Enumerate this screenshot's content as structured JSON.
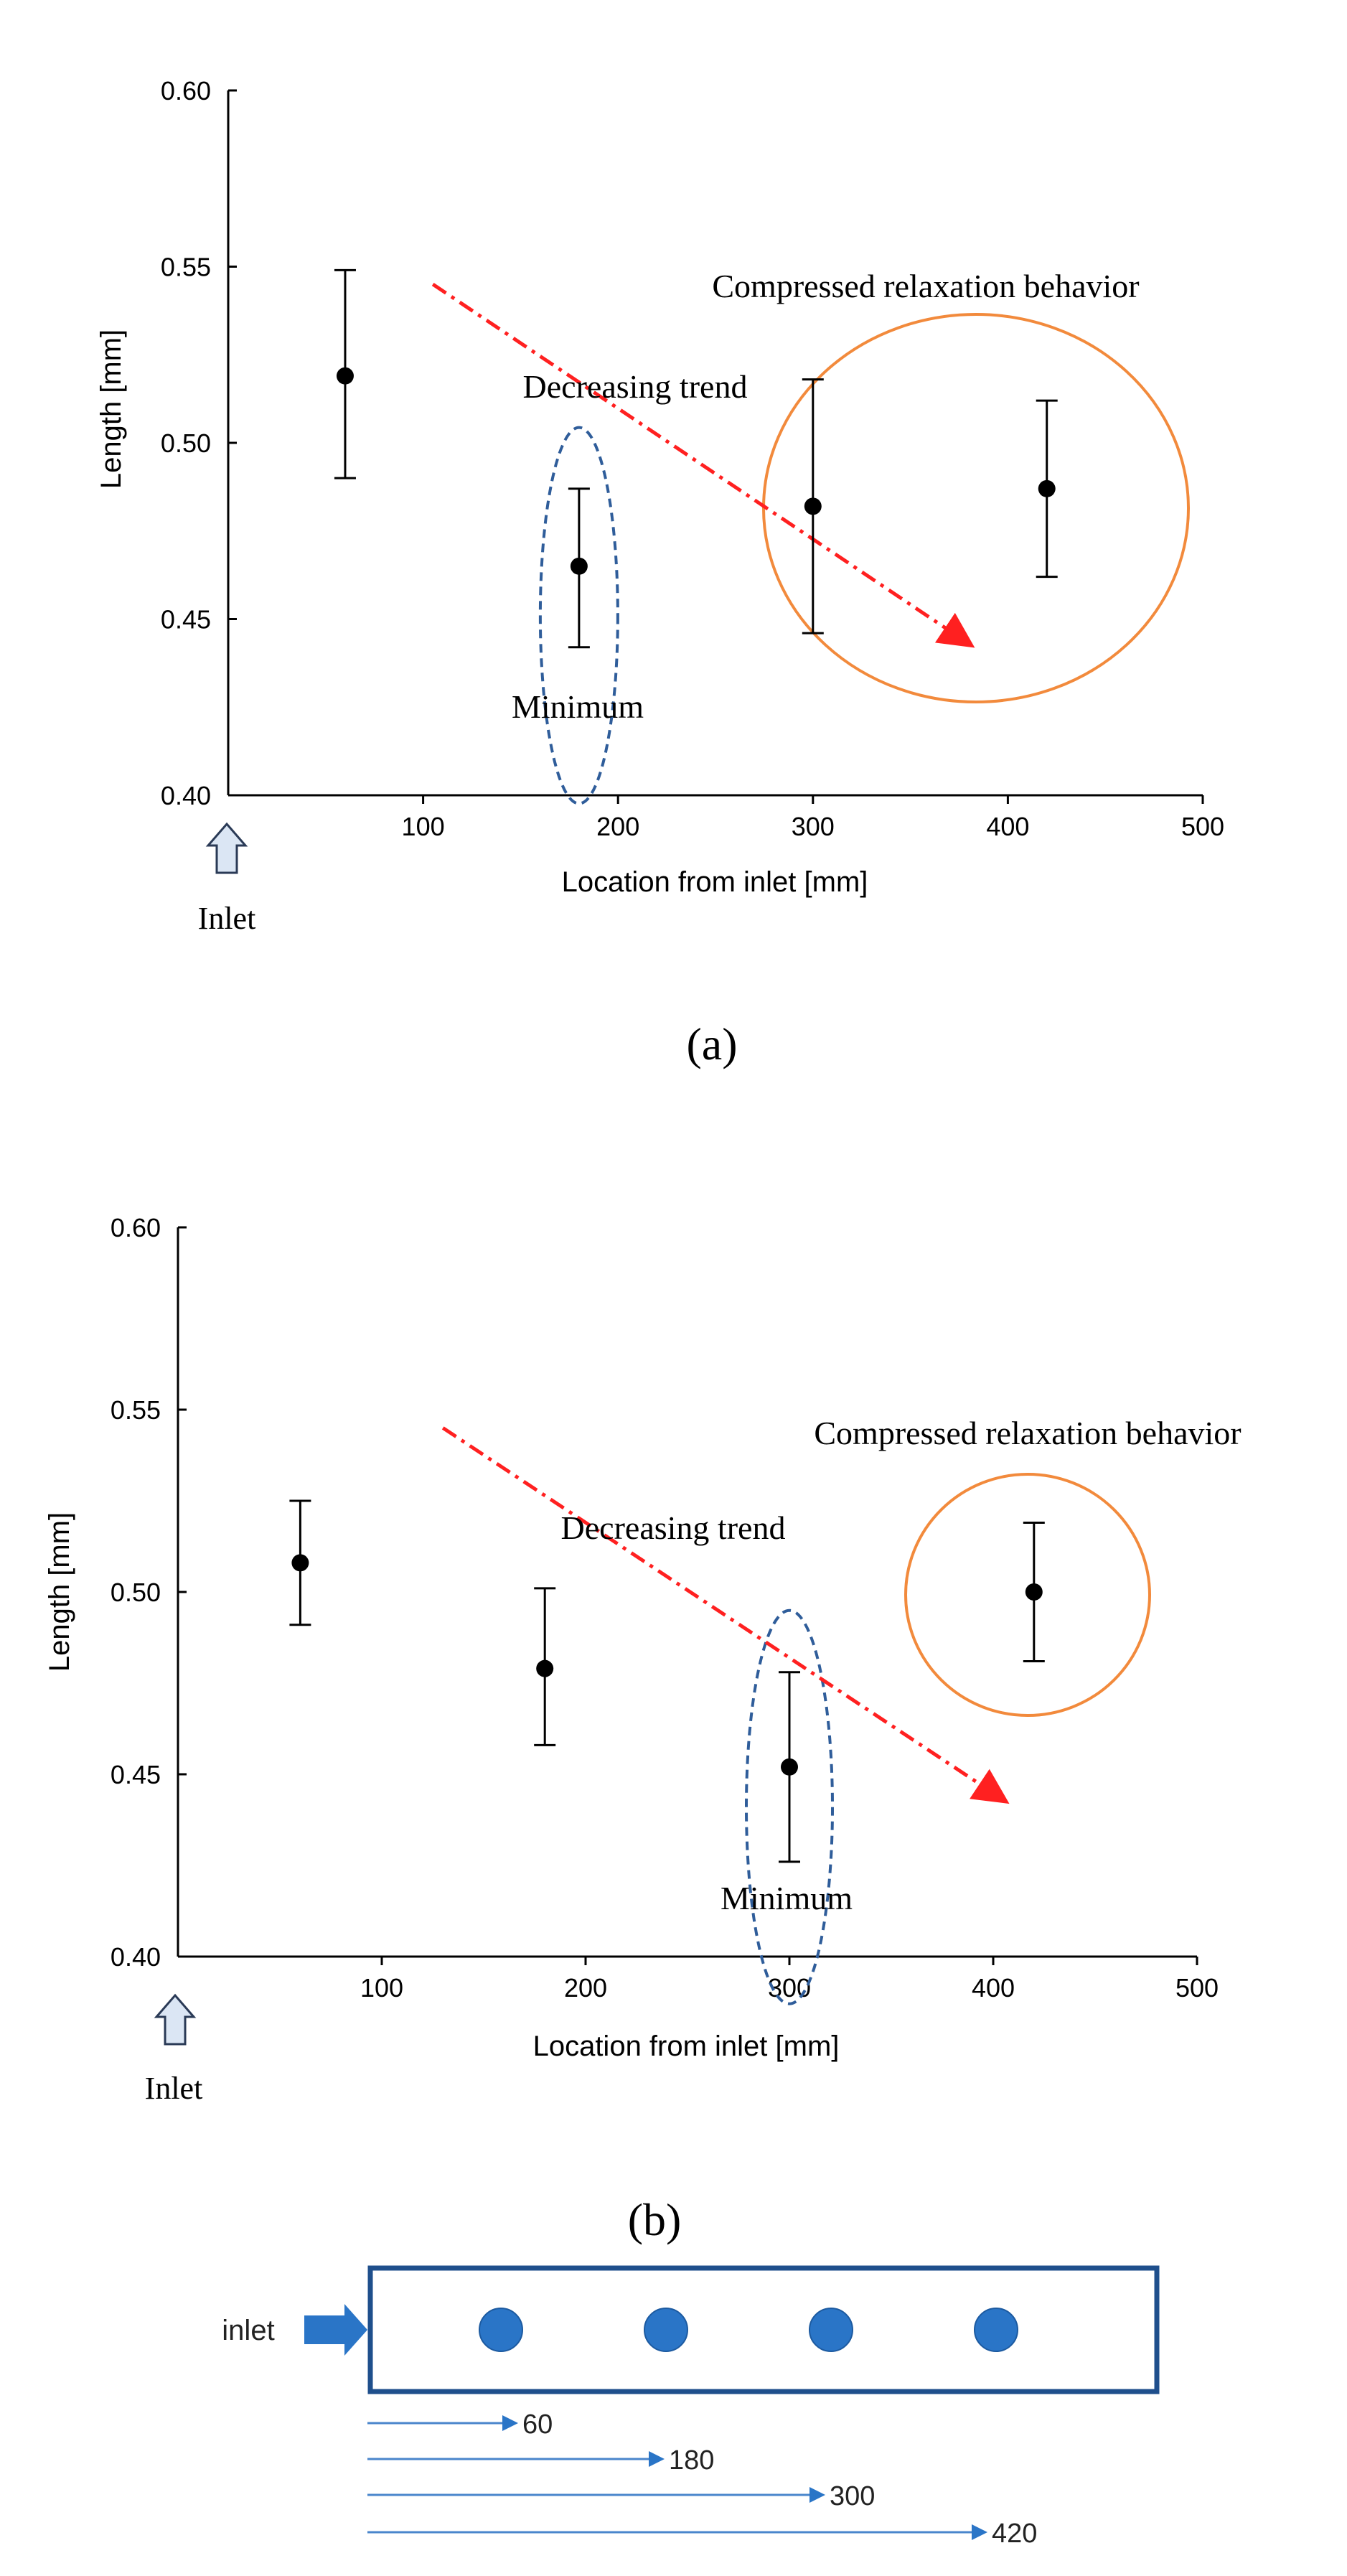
{
  "colors": {
    "marker": "#000000",
    "trend_arrow": "#ff2020",
    "highlight_circle": "#f28a3c",
    "minimum_ellipse": "#2f5d9a",
    "inlet_arrow_fill": "#dbe6f4",
    "inlet_arrow_stroke": "#2a3a56",
    "schematic_blue": "#2a75c7",
    "schematic_border": "#1f4f8c"
  },
  "chart_data": [
    {
      "panel_label": "(a)",
      "type": "scatter",
      "xlabel": "Location from inlet [mm]",
      "ylabel": "Length [mm]",
      "xlim": [
        0,
        500
      ],
      "ylim": [
        0.4,
        0.6
      ],
      "xticks": [
        100,
        200,
        300,
        400,
        500
      ],
      "xtick_labels": [
        "100",
        "200",
        "300",
        "400",
        "500"
      ],
      "yticks": [
        0.4,
        0.45,
        0.5,
        0.55,
        0.6
      ],
      "ytick_labels": [
        "0.40",
        "0.45",
        "0.50",
        "0.55",
        "0.60"
      ],
      "series": [
        {
          "name": "Length",
          "x": [
            60,
            180,
            300,
            420
          ],
          "y": [
            0.519,
            0.465,
            0.482,
            0.487
          ],
          "err_low": [
            0.49,
            0.442,
            0.446,
            0.462
          ],
          "err_high": [
            0.549,
            0.487,
            0.518,
            0.512
          ]
        }
      ],
      "annotations": {
        "inlet": "Inlet",
        "trend": "Decreasing trend",
        "trend_line": {
          "x0": 105,
          "y0": 0.545,
          "x1": 380,
          "y1": 0.443
        },
        "minimum": "Minimum",
        "minimum_at_x": 180,
        "highlight": "Compressed relaxation behavior",
        "highlight_points_x": [
          300,
          420
        ]
      },
      "grid": false
    },
    {
      "panel_label": "(b)",
      "type": "scatter",
      "xlabel": "Location from inlet [mm]",
      "ylabel": "Length [mm]",
      "xlim": [
        0,
        500
      ],
      "ylim": [
        0.4,
        0.6
      ],
      "xticks": [
        100,
        200,
        300,
        400,
        500
      ],
      "xtick_labels": [
        "100",
        "200",
        "300",
        "400",
        "500"
      ],
      "yticks": [
        0.4,
        0.45,
        0.5,
        0.55,
        0.6
      ],
      "ytick_labels": [
        "0.40",
        "0.45",
        "0.50",
        "0.55",
        "0.60"
      ],
      "series": [
        {
          "name": "Length",
          "x": [
            60,
            180,
            300,
            420
          ],
          "y": [
            0.508,
            0.479,
            0.452,
            0.5
          ],
          "err_low": [
            0.491,
            0.458,
            0.426,
            0.481
          ],
          "err_high": [
            0.525,
            0.501,
            0.478,
            0.519
          ]
        }
      ],
      "annotations": {
        "inlet": "Inlet",
        "trend": "Decreasing trend",
        "trend_line": {
          "x0": 130,
          "y0": 0.545,
          "x1": 405,
          "y1": 0.443
        },
        "minimum": "Minimum",
        "minimum_at_x": 300,
        "highlight": "Compressed relaxation behavior",
        "highlight_points_x": [
          420
        ]
      },
      "grid": false
    }
  ],
  "schematic": {
    "inlet_label": "inlet",
    "positions": [
      60,
      180,
      300,
      420
    ],
    "position_labels": [
      "60",
      "180",
      "300",
      "420"
    ]
  }
}
